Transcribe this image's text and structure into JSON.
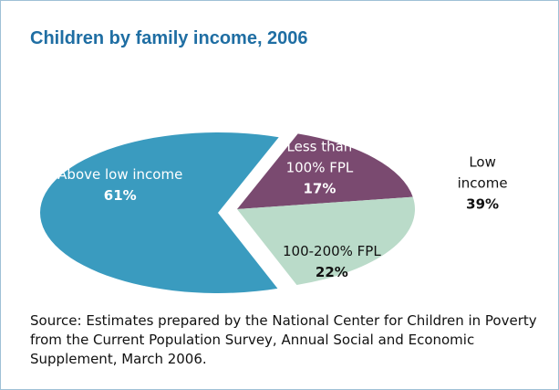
{
  "chart_data": {
    "type": "pie",
    "title": "Children by family income, 2006",
    "categories": [
      "Above low income",
      "Less than 100% FPL",
      "100-200% FPL"
    ],
    "values": [
      61,
      17,
      22
    ],
    "value_labels": [
      "61%",
      "17%",
      "22%"
    ],
    "colors": [
      "#3a9bbf",
      "#7a4a70",
      "#badbc9"
    ],
    "group": {
      "label": "Low income",
      "value": 39,
      "value_label": "39%"
    },
    "source": "Source: Estimates prepared by the National Center for Children in Poverty from the Current Population Survey, Annual Social and Economic Supplement, March 2006."
  }
}
